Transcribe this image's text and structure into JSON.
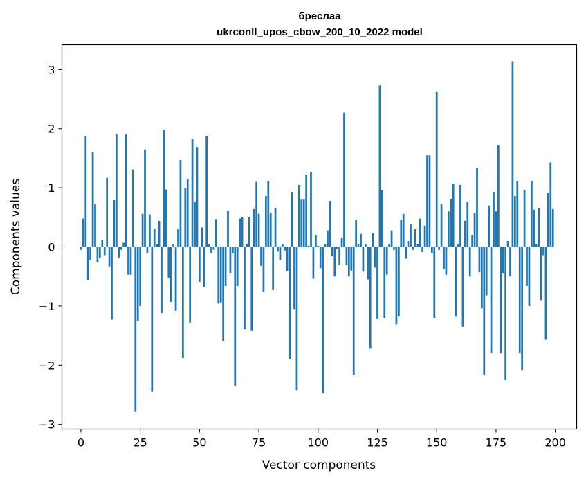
{
  "chart_data": {
    "type": "bar",
    "title": "бреслаа",
    "subtitle": "ukrconll_upos_cbow_200_10_2022 model",
    "xlabel": "Vector components",
    "ylabel": "Components values",
    "xlim": [
      -8,
      209
    ],
    "ylim": [
      -3.08,
      3.42
    ],
    "xticks": [
      0,
      25,
      50,
      75,
      100,
      125,
      150,
      175,
      200
    ],
    "yticks": [
      -3,
      -2,
      -1,
      0,
      1,
      2,
      3
    ],
    "ytick_labels": [
      "−3",
      "−2",
      "−1",
      "0",
      "1",
      "2",
      "3"
    ],
    "bar_color": "#1f77b4",
    "values": [
      -0.05,
      0.48,
      1.87,
      -0.56,
      -0.22,
      1.6,
      0.72,
      -0.26,
      -0.18,
      0.12,
      -0.14,
      1.17,
      -0.33,
      -1.23,
      0.79,
      1.91,
      -0.18,
      -0.05,
      0.07,
      1.9,
      -0.47,
      -0.47,
      1.31,
      -2.79,
      -1.25,
      -1.0,
      0.56,
      1.65,
      -0.1,
      0.55,
      -2.45,
      0.31,
      0.05,
      0.44,
      -1.12,
      1.98,
      0.97,
      -0.52,
      -0.93,
      0.05,
      -1.08,
      0.31,
      1.47,
      -1.88,
      1.0,
      1.15,
      -1.28,
      1.83,
      0.76,
      1.69,
      -0.59,
      0.33,
      -0.68,
      1.87,
      0.05,
      -0.1,
      -0.05,
      0.47,
      -0.96,
      -0.94,
      -1.59,
      -0.66,
      0.61,
      -0.44,
      -0.1,
      -2.36,
      -0.66,
      0.48,
      0.51,
      -1.39,
      0.05,
      0.51,
      -1.42,
      0.64,
      1.1,
      0.56,
      -0.32,
      -0.76,
      0.86,
      1.12,
      0.58,
      -0.73,
      0.66,
      -0.08,
      -0.22,
      0.05,
      -0.06,
      -0.41,
      -1.9,
      0.93,
      -1.05,
      -2.42,
      1.05,
      0.8,
      0.8,
      1.22,
      0.02,
      1.27,
      -0.54,
      0.2,
      0.02,
      -0.36,
      -2.48,
      0.05,
      0.28,
      0.78,
      -0.16,
      -0.5,
      -0.04,
      -0.3,
      0.16,
      2.27,
      -0.31,
      -0.5,
      -0.4,
      -2.17,
      0.45,
      0.05,
      0.22,
      -0.42,
      0.05,
      -0.55,
      -1.72,
      0.23,
      -0.35,
      -1.21,
      2.73,
      0.96,
      -1.2,
      -0.47,
      0.05,
      0.28,
      -0.05,
      -1.31,
      -1.18,
      0.46,
      0.56,
      -0.2,
      0.1,
      0.38,
      -0.05,
      0.3,
      0.05,
      0.48,
      -0.09,
      0.36,
      1.55,
      1.55,
      -0.1,
      -1.2,
      2.62,
      -0.05,
      0.72,
      -0.37,
      -0.47,
      0.6,
      0.81,
      1.07,
      -1.18,
      0.05,
      1.05,
      -1.35,
      0.44,
      0.76,
      -0.5,
      0.2,
      0.57,
      1.34,
      -0.43,
      -1.04,
      -2.16,
      -0.82,
      0.7,
      -1.8,
      0.93,
      0.6,
      1.72,
      -1.8,
      -0.44,
      -2.25,
      0.1,
      -0.5,
      3.14,
      0.86,
      1.11,
      -1.8,
      -2.08,
      0.96,
      -0.66,
      -1.0,
      1.12,
      0.63,
      0.05,
      0.65,
      -0.9,
      -0.14,
      -1.57,
      0.91,
      1.43,
      0.64
    ]
  }
}
